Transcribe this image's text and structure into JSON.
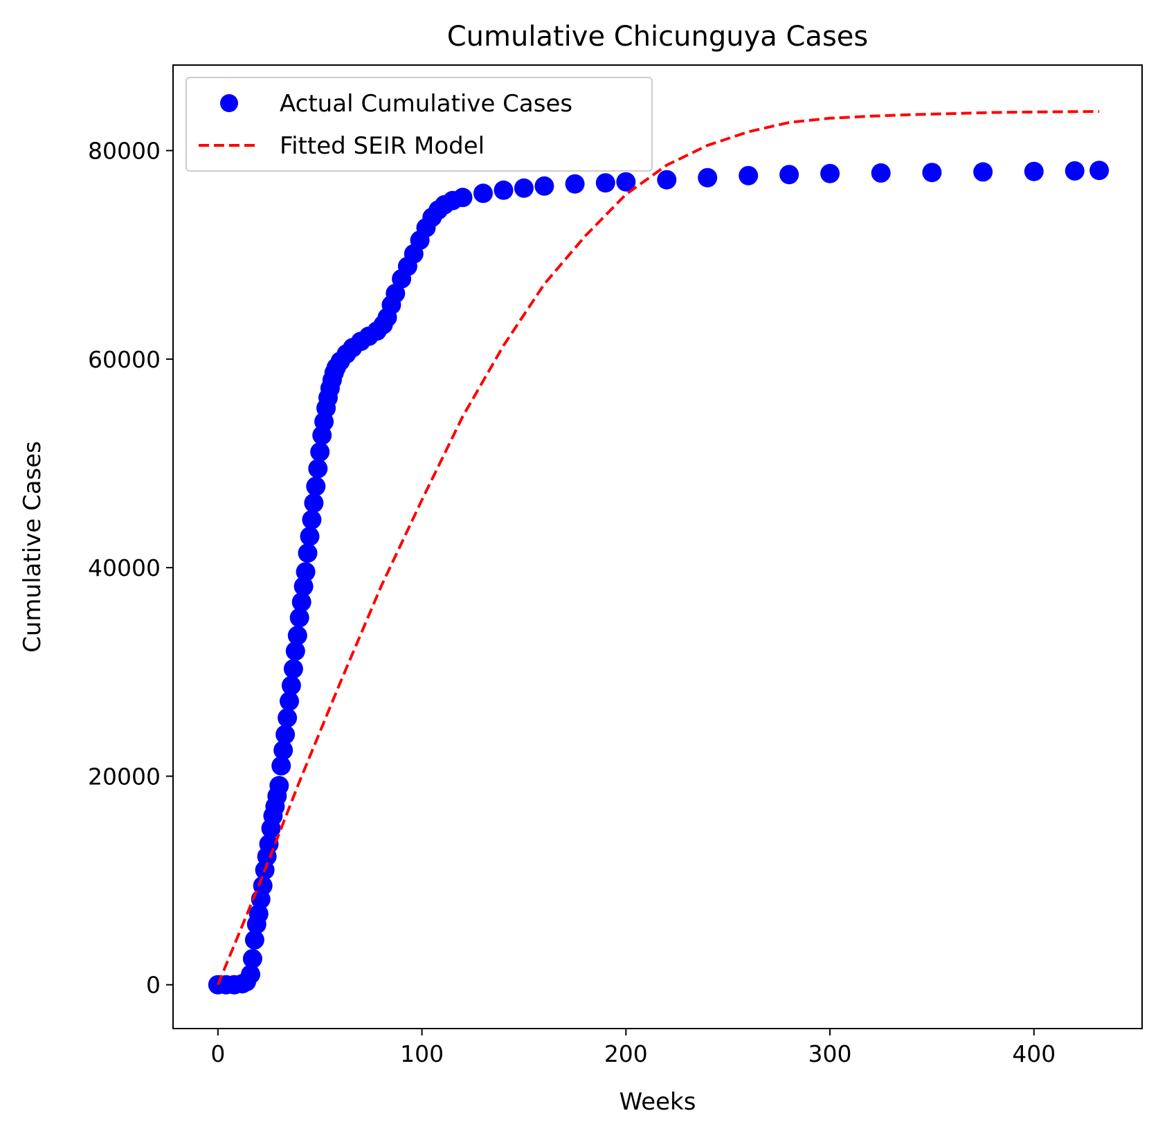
{
  "chart_data": {
    "type": "scatter",
    "title": "Cumulative Chicunguya Cases",
    "xlabel": "Weeks",
    "ylabel": "Cumulative Cases",
    "xlim": [
      -22,
      453
    ],
    "ylim": [
      -4200,
      88200
    ],
    "xticks": [
      0,
      100,
      200,
      300,
      400
    ],
    "yticks": [
      0,
      20000,
      40000,
      60000,
      80000
    ],
    "grid": false,
    "legend_position": "upper left",
    "series": [
      {
        "name": "Actual Cumulative Cases",
        "kind": "scatter",
        "color": "#0000ff",
        "points": [
          [
            0,
            0
          ],
          [
            4,
            0
          ],
          [
            8,
            0
          ],
          [
            12,
            100
          ],
          [
            14,
            300
          ],
          [
            16,
            1000
          ],
          [
            17,
            2500
          ],
          [
            18,
            4300
          ],
          [
            19,
            5800
          ],
          [
            20,
            6800
          ],
          [
            21,
            8200
          ],
          [
            22,
            9500
          ],
          [
            23,
            11000
          ],
          [
            24,
            12300
          ],
          [
            25,
            13500
          ],
          [
            26,
            15000
          ],
          [
            27,
            16200
          ],
          [
            28,
            17100
          ],
          [
            29,
            18100
          ],
          [
            30,
            19100
          ],
          [
            31,
            21000
          ],
          [
            32,
            22500
          ],
          [
            33,
            24000
          ],
          [
            34,
            25600
          ],
          [
            35,
            27200
          ],
          [
            36,
            28700
          ],
          [
            37,
            30300
          ],
          [
            38,
            32000
          ],
          [
            39,
            33500
          ],
          [
            40,
            35200
          ],
          [
            41,
            36700
          ],
          [
            42,
            38200
          ],
          [
            43,
            39600
          ],
          [
            44,
            41400
          ],
          [
            45,
            43000
          ],
          [
            46,
            44600
          ],
          [
            47,
            46200
          ],
          [
            48,
            47800
          ],
          [
            49,
            49500
          ],
          [
            50,
            51100
          ],
          [
            51,
            52700
          ],
          [
            52,
            54000
          ],
          [
            53,
            55300
          ],
          [
            54,
            56300
          ],
          [
            55,
            57200
          ],
          [
            56,
            58000
          ],
          [
            57,
            58700
          ],
          [
            58,
            59200
          ],
          [
            60,
            59800
          ],
          [
            63,
            60500
          ],
          [
            66,
            61100
          ],
          [
            70,
            61700
          ],
          [
            74,
            62200
          ],
          [
            78,
            62700
          ],
          [
            81,
            63300
          ],
          [
            83,
            64000
          ],
          [
            85,
            65200
          ],
          [
            87,
            66300
          ],
          [
            90,
            67700
          ],
          [
            93,
            68900
          ],
          [
            96,
            70100
          ],
          [
            99,
            71400
          ],
          [
            102,
            72600
          ],
          [
            105,
            73600
          ],
          [
            108,
            74300
          ],
          [
            111,
            74800
          ],
          [
            115,
            75200
          ],
          [
            120,
            75500
          ],
          [
            130,
            75900
          ],
          [
            140,
            76200
          ],
          [
            150,
            76400
          ],
          [
            160,
            76600
          ],
          [
            175,
            76800
          ],
          [
            190,
            76900
          ],
          [
            200,
            77000
          ],
          [
            220,
            77200
          ],
          [
            240,
            77400
          ],
          [
            260,
            77600
          ],
          [
            280,
            77700
          ],
          [
            300,
            77800
          ],
          [
            325,
            77850
          ],
          [
            350,
            77900
          ],
          [
            375,
            77950
          ],
          [
            400,
            78000
          ],
          [
            420,
            78050
          ],
          [
            432,
            78100
          ]
        ]
      },
      {
        "name": "Fitted SEIR Model",
        "kind": "line",
        "style": "dashed",
        "color": "#ff0000",
        "points": [
          [
            0,
            0
          ],
          [
            20,
            9500
          ],
          [
            40,
            19500
          ],
          [
            60,
            29000
          ],
          [
            80,
            38200
          ],
          [
            100,
            46500
          ],
          [
            120,
            54500
          ],
          [
            140,
            61300
          ],
          [
            160,
            67200
          ],
          [
            180,
            71800
          ],
          [
            200,
            75800
          ],
          [
            220,
            78600
          ],
          [
            240,
            80500
          ],
          [
            260,
            81800
          ],
          [
            280,
            82700
          ],
          [
            300,
            83100
          ],
          [
            320,
            83300
          ],
          [
            340,
            83450
          ],
          [
            360,
            83550
          ],
          [
            380,
            83650
          ],
          [
            400,
            83700
          ],
          [
            432,
            83750
          ]
        ]
      }
    ]
  }
}
